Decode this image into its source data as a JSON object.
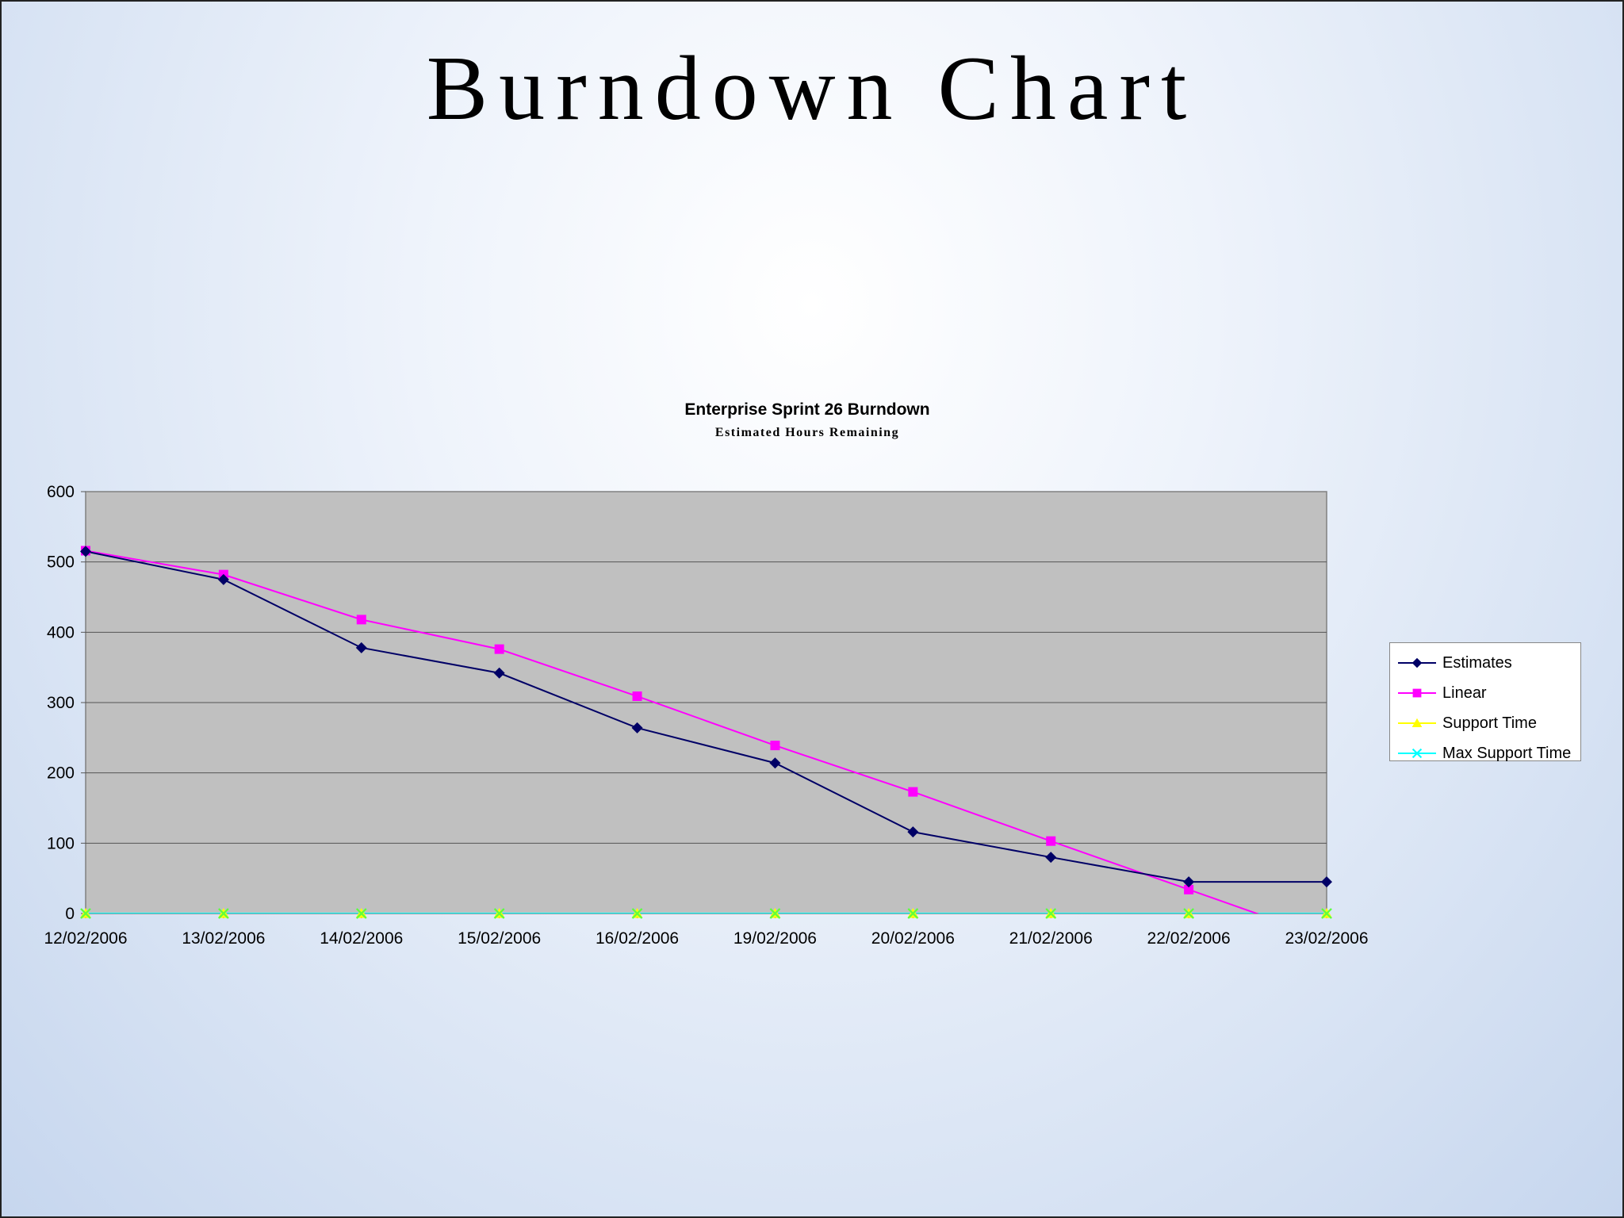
{
  "slide": {
    "title": "Burndown Chart"
  },
  "chart_data": {
    "type": "line",
    "title": "Enterprise Sprint 26 Burndown",
    "subtitle": "Estimated Hours Remaining",
    "categories": [
      "12/02/2006",
      "13/02/2006",
      "14/02/2006",
      "15/02/2006",
      "16/02/2006",
      "19/02/2006",
      "20/02/2006",
      "21/02/2006",
      "22/02/2006",
      "23/02/2006"
    ],
    "ylim": [
      0,
      600
    ],
    "yticks": [
      "0",
      "100",
      "200",
      "300",
      "400",
      "500",
      "600"
    ],
    "grid": true,
    "legend_position": "right",
    "series": [
      {
        "name": "Estimates",
        "color": "#000066",
        "marker": "diamond",
        "values": [
          515,
          475,
          378,
          342,
          264,
          214,
          116,
          80,
          45,
          45
        ]
      },
      {
        "name": "Linear",
        "color": "#ff00ff",
        "marker": "square",
        "values": [
          516,
          482,
          418,
          376,
          309,
          239,
          173,
          103,
          34,
          -35
        ]
      },
      {
        "name": "Support Time",
        "color": "#ffff00",
        "marker": "triangle",
        "values": [
          0,
          0,
          0,
          0,
          0,
          0,
          0,
          0,
          0,
          0
        ]
      },
      {
        "name": "Max Support Time",
        "color": "#00ffff",
        "marker": "x",
        "values": [
          0,
          0,
          0,
          0,
          0,
          0,
          0,
          0,
          0,
          0
        ]
      }
    ]
  }
}
